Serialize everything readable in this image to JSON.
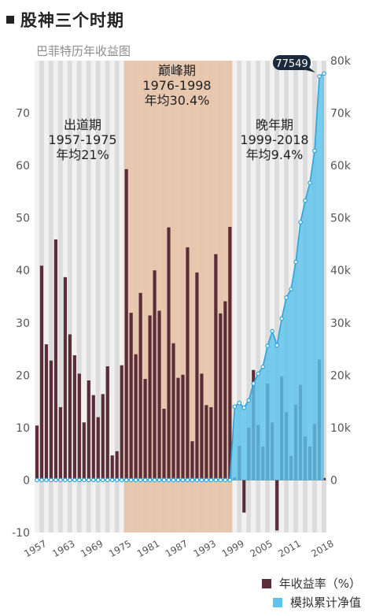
{
  "title": "股神三个时期",
  "subtitle": "巴菲特历年收益图",
  "colors": {
    "bar": "#5a2d38",
    "area": "#5bc3ec",
    "line": "#2fa3d8",
    "peak_band": "#e8c3a8",
    "stripe_light": "#f1f1f1",
    "stripe_dark": "#dcdcdc",
    "callout_bg": "#1b2a3a"
  },
  "periods": [
    {
      "name": "出道期",
      "range": "1957-1975",
      "avg": "年均21%"
    },
    {
      "name": "巅峰期",
      "range": "1976-1998",
      "avg": "年均30.4%"
    },
    {
      "name": "晚年期",
      "range": "1999-2018",
      "avg": "年均9.4%"
    }
  ],
  "callout": "77549",
  "legend": {
    "annual_return": "年收益率（%）",
    "cumulative": "模拟累计净值"
  },
  "chart_data": {
    "type": "bar+area",
    "x": [
      1957,
      1958,
      1959,
      1960,
      1961,
      1962,
      1963,
      1964,
      1965,
      1966,
      1967,
      1968,
      1969,
      1970,
      1971,
      1972,
      1973,
      1974,
      1975,
      1976,
      1977,
      1978,
      1979,
      1980,
      1981,
      1982,
      1983,
      1984,
      1985,
      1986,
      1987,
      1988,
      1989,
      1990,
      1991,
      1992,
      1993,
      1994,
      1995,
      1996,
      1997,
      1998,
      1999,
      2000,
      2001,
      2002,
      2003,
      2004,
      2005,
      2006,
      2007,
      2008,
      2009,
      2010,
      2011,
      2012,
      2013,
      2014,
      2015,
      2016,
      2017,
      2018
    ],
    "x_tick_labels": [
      "1957",
      "1963",
      "1969",
      "1975",
      "1981",
      "1987",
      "1993",
      "1999",
      "2005",
      "2011",
      "2018"
    ],
    "series": [
      {
        "name": "年收益率（%）",
        "axis": "left",
        "kind": "bar",
        "values": [
          10.4,
          40.9,
          25.9,
          22.8,
          45.9,
          13.9,
          38.7,
          27.8,
          23.8,
          20.3,
          11.0,
          19.0,
          16.2,
          12.0,
          16.4,
          21.7,
          4.7,
          5.5,
          21.9,
          59.3,
          31.9,
          24.0,
          35.7,
          19.3,
          31.4,
          40.0,
          32.3,
          13.6,
          48.2,
          26.1,
          19.5,
          20.1,
          44.4,
          7.4,
          39.6,
          20.3,
          14.3,
          13.9,
          43.1,
          31.8,
          34.1,
          48.3,
          0.5,
          6.5,
          -6.2,
          10.0,
          21.0,
          10.5,
          6.4,
          18.4,
          11.0,
          -9.6,
          19.8,
          13.0,
          4.6,
          14.4,
          18.2,
          8.3,
          6.4,
          10.7,
          23.0,
          0.4
        ]
      },
      {
        "name": "模拟累计净值",
        "axis": "right",
        "kind": "area",
        "values": [
          0,
          0,
          0,
          0,
          0,
          0,
          0,
          0,
          0,
          0,
          0,
          0,
          0,
          0,
          0,
          0,
          0,
          0,
          0,
          0,
          0,
          0,
          0,
          0,
          0,
          0,
          0,
          0,
          0,
          0,
          0,
          0,
          0,
          0,
          0,
          0,
          0,
          0,
          0,
          0,
          0,
          0,
          14000,
          14700,
          13800,
          15200,
          18400,
          20300,
          21600,
          25600,
          28400,
          25700,
          30800,
          34800,
          36400,
          41600,
          49200,
          53300,
          56700,
          62800,
          77000,
          77549
        ]
      }
    ],
    "left_axis": {
      "min": -10,
      "max": 80,
      "ticks": [
        "-10",
        "0",
        "10",
        "20",
        "30",
        "40",
        "50",
        "60",
        "70"
      ]
    },
    "right_axis": {
      "min": -10000,
      "max": 80000,
      "ticks": [
        "0",
        "10k",
        "20k",
        "30k",
        "40k",
        "50k",
        "60k",
        "70k",
        "80k"
      ]
    }
  }
}
